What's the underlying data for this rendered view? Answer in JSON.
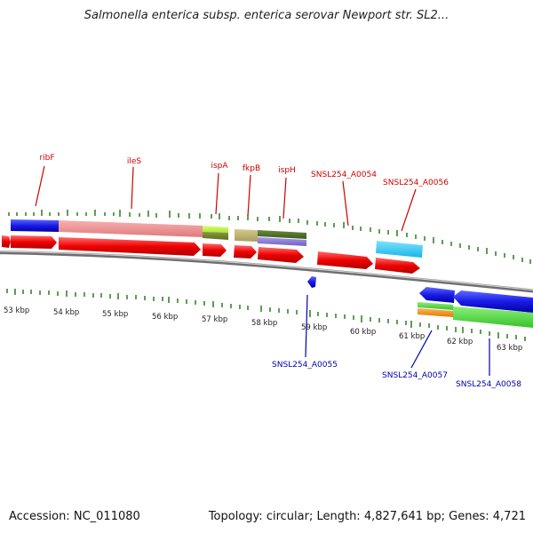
{
  "title": "Salmonella enterica subsp. enterica serovar Newport str. SL2...",
  "footer": {
    "accession_label": "Accession:",
    "accession": "NC_011080",
    "topology_label": "Topology:",
    "topology": "circular",
    "length_label": "Length:",
    "length": "4,827,641 bp",
    "genes_label": "Genes:",
    "genes": "4,721"
  },
  "colors": {
    "top_label": "#cc0000",
    "bottom_label": "#0000aa",
    "tick": "#2a7a1a",
    "backbone": "#8c8c8c"
  },
  "kbp_ticks": [
    "53 kbp",
    "54 kbp",
    "55 kbp",
    "56 kbp",
    "57 kbp",
    "58 kbp",
    "59 kbp",
    "60 kbp",
    "61 kbp",
    "62 kbp",
    "63 kbp"
  ],
  "gene_labels_top": [
    "ribF",
    "ileS",
    "ispA",
    "fkpB",
    "ispH",
    "SNSL254_A0054",
    "SNSL254_A0056"
  ],
  "gene_labels_bottom": [
    "SNSL254_A0055",
    "SNSL254_A0057",
    "SNSL254_A0058"
  ]
}
